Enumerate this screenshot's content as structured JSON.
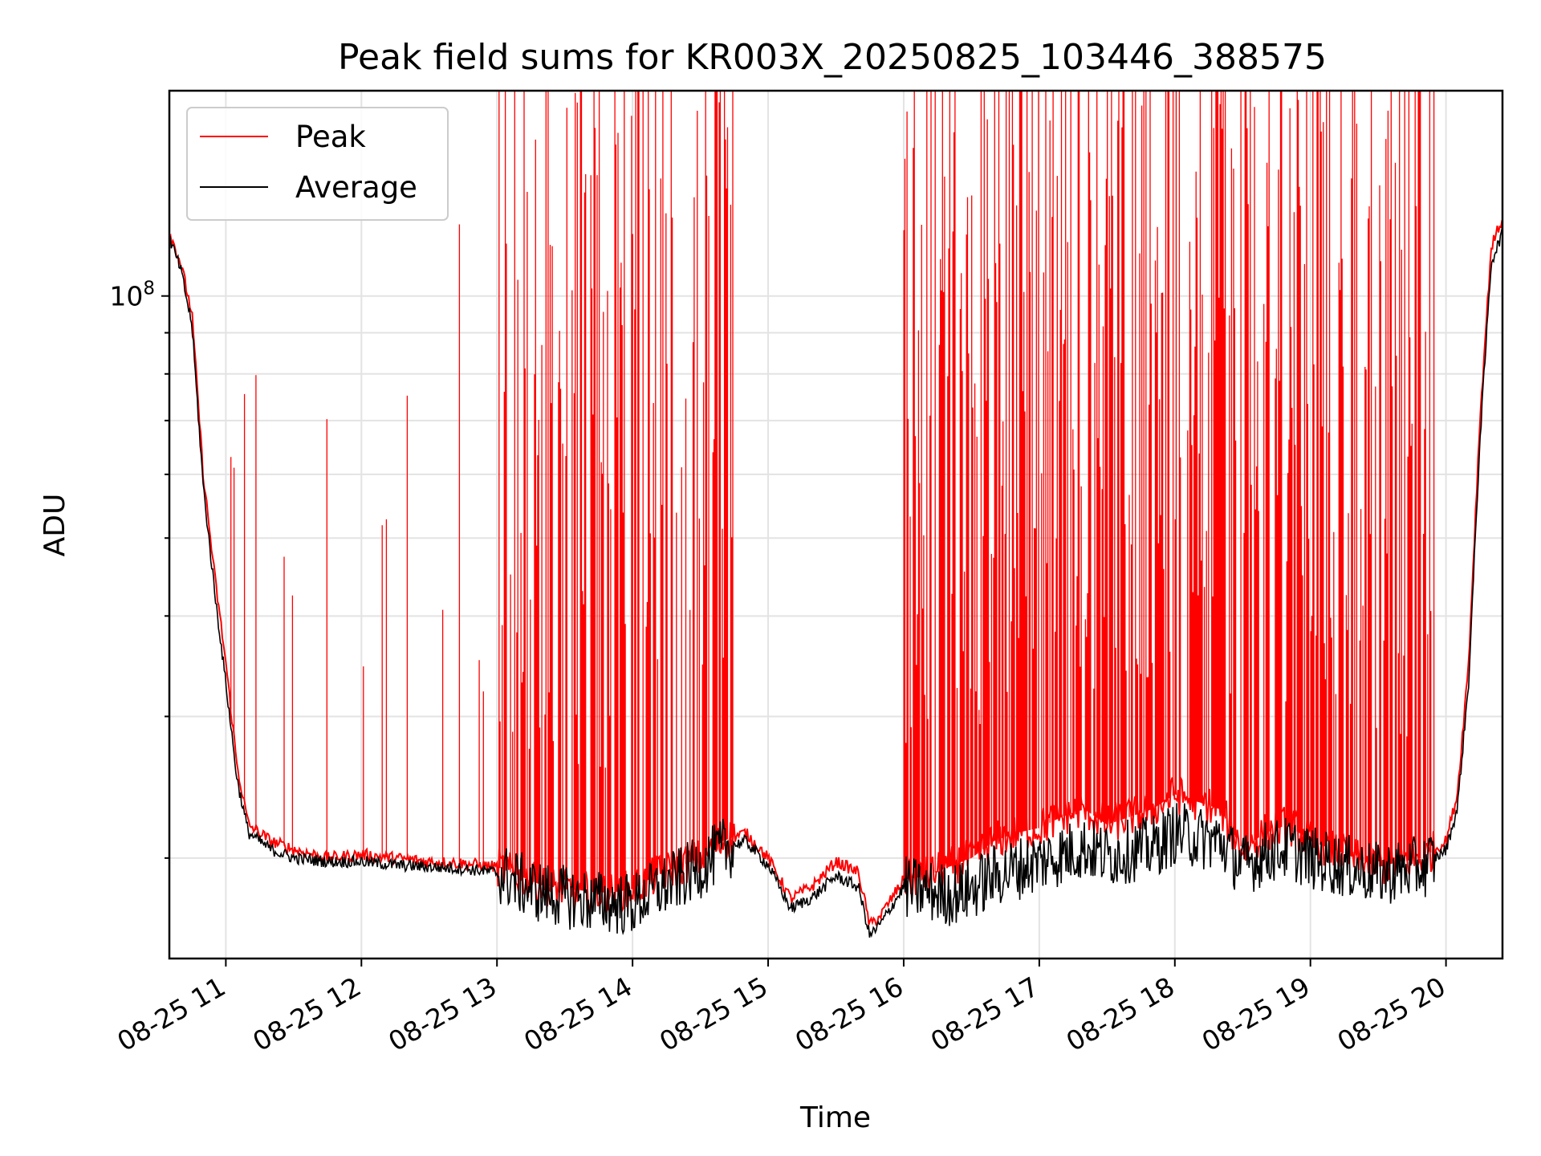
{
  "chart_data": {
    "type": "line",
    "title": "Peak field sums for KR003X_20250825_103446_388575",
    "xlabel": "Time",
    "ylabel": "ADU",
    "y_scale": "log",
    "ylim": [
      15000000,
      180000000
    ],
    "x_date": "2025-08-25",
    "xlim": [
      "10:35",
      "20:25"
    ],
    "x_ticks": [
      {
        "time": "11:00",
        "label": "08-25 11"
      },
      {
        "time": "12:00",
        "label": "08-25 12"
      },
      {
        "time": "13:00",
        "label": "08-25 13"
      },
      {
        "time": "14:00",
        "label": "08-25 14"
      },
      {
        "time": "15:00",
        "label": "08-25 15"
      },
      {
        "time": "16:00",
        "label": "08-25 16"
      },
      {
        "time": "17:00",
        "label": "08-25 17"
      },
      {
        "time": "18:00",
        "label": "08-25 18"
      },
      {
        "time": "19:00",
        "label": "08-25 19"
      },
      {
        "time": "20:00",
        "label": "08-25 20"
      }
    ],
    "y_ticks": [
      {
        "value": 100000000,
        "base": "10",
        "exp": "8"
      }
    ],
    "grid": true,
    "legend_position": "top-left",
    "series": [
      {
        "name": "Peak",
        "color": "#ff0000",
        "x": [
          "10:35",
          "10:40",
          "10:45",
          "10:50",
          "10:55",
          "11:00",
          "11:05",
          "11:10",
          "11:20",
          "11:30",
          "11:45",
          "12:00",
          "12:15",
          "12:30",
          "12:45",
          "13:00",
          "13:10",
          "13:20",
          "13:30",
          "13:40",
          "13:50",
          "14:00",
          "14:10",
          "14:20",
          "14:30",
          "14:40",
          "14:50",
          "15:00",
          "15:10",
          "15:20",
          "15:30",
          "15:40",
          "15:45",
          "15:50",
          "16:00",
          "16:10",
          "16:20",
          "16:30",
          "16:40",
          "16:50",
          "17:00",
          "17:10",
          "17:20",
          "17:30",
          "17:40",
          "17:50",
          "18:00",
          "18:10",
          "18:20",
          "18:30",
          "18:40",
          "18:50",
          "19:00",
          "19:10",
          "19:20",
          "19:30",
          "19:40",
          "19:50",
          "20:00",
          "20:05",
          "20:10",
          "20:15",
          "20:20",
          "20:25"
        ],
        "values": [
          120000000,
          110000000,
          95000000,
          60000000,
          45000000,
          35000000,
          26000000,
          22000000,
          21000000,
          20500000,
          20000000,
          20200000,
          20000000,
          19800000,
          19700000,
          19500000,
          19000000,
          18500000,
          18300000,
          18200000,
          18100000,
          18300000,
          19000000,
          19500000,
          20000000,
          21000000,
          21500000,
          20000000,
          17800000,
          18500000,
          19800000,
          19200000,
          16500000,
          17000000,
          18800000,
          19000000,
          19500000,
          20000000,
          21000000,
          21500000,
          21800000,
          22500000,
          23000000,
          22000000,
          22500000,
          23000000,
          24000000,
          23500000,
          23000000,
          20500000,
          21500000,
          22000000,
          21000000,
          20500000,
          20000000,
          19500000,
          19800000,
          20000000,
          21000000,
          24000000,
          35000000,
          70000000,
          115000000,
          125000000
        ]
      },
      {
        "name": "Average",
        "color": "#000000",
        "x": [
          "10:35",
          "10:40",
          "10:45",
          "10:50",
          "10:55",
          "11:00",
          "11:05",
          "11:10",
          "11:20",
          "11:30",
          "11:45",
          "12:00",
          "12:15",
          "12:30",
          "12:45",
          "13:00",
          "13:10",
          "13:20",
          "13:30",
          "13:40",
          "13:50",
          "14:00",
          "14:10",
          "14:20",
          "14:30",
          "14:40",
          "14:50",
          "15:00",
          "15:10",
          "15:20",
          "15:30",
          "15:40",
          "15:45",
          "15:50",
          "16:00",
          "16:10",
          "16:20",
          "16:30",
          "16:40",
          "16:50",
          "17:00",
          "17:10",
          "17:20",
          "17:30",
          "17:40",
          "17:50",
          "18:00",
          "18:10",
          "18:20",
          "18:30",
          "18:40",
          "18:50",
          "19:00",
          "19:10",
          "19:20",
          "19:30",
          "19:40",
          "19:50",
          "20:00",
          "20:05",
          "20:10",
          "20:15",
          "20:20",
          "20:25"
        ],
        "values": [
          118000000,
          108000000,
          92000000,
          58000000,
          43000000,
          33000000,
          25000000,
          21500000,
          20500000,
          20000000,
          19800000,
          19800000,
          19600000,
          19500000,
          19400000,
          19200000,
          18600000,
          18100000,
          17900000,
          17700000,
          17600000,
          17500000,
          18200000,
          18800000,
          19500000,
          20500000,
          21000000,
          19600000,
          17300000,
          17900000,
          19000000,
          18400000,
          16000000,
          16600000,
          18400000,
          18200000,
          18000000,
          18300000,
          19000000,
          19400000,
          19800000,
          20200000,
          20600000,
          20100000,
          20400000,
          20600000,
          21500000,
          21200000,
          21000000,
          19500000,
          20300000,
          20600000,
          20000000,
          19700000,
          19400000,
          19100000,
          19300000,
          19500000,
          20500000,
          23000000,
          33000000,
          66000000,
          110000000,
          120000000
        ]
      }
    ]
  }
}
